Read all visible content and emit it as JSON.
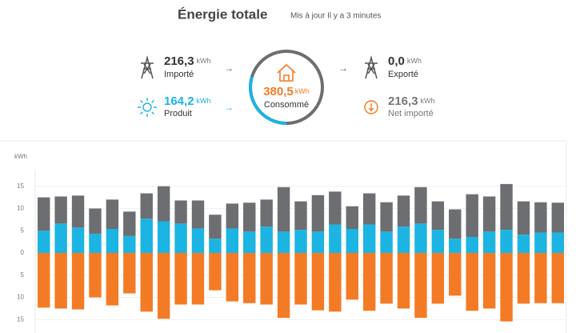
{
  "header": {
    "title": "Énergie totale",
    "subtitle": "Mis à jour Il y a 3 minutes"
  },
  "summary": {
    "imported": {
      "value": "216,3",
      "unit": "kWh",
      "label": "Importé"
    },
    "produced": {
      "value": "164,2",
      "unit": "kWh",
      "label": "Produit"
    },
    "consumed": {
      "value": "380,5",
      "unit": "kWh",
      "label": "Consommé"
    },
    "exported": {
      "value": "0,0",
      "unit": "kWh",
      "label": "Exporté"
    },
    "net": {
      "value": "216,3",
      "unit": "kWh",
      "label": "Net importé"
    }
  },
  "chart_data": {
    "type": "bar",
    "y_label": "kWh",
    "categories": [
      null,
      null,
      null,
      null,
      null,
      null,
      null,
      null,
      null,
      null,
      null,
      null,
      null,
      null,
      null,
      null,
      null,
      null,
      null,
      null,
      null,
      null,
      null,
      null,
      null,
      null,
      null,
      null,
      null,
      null,
      null
    ],
    "series": [
      {
        "color": "#6d6e71",
        "values": [
          7.5,
          6.1,
          7.2,
          5.7,
          6.6,
          5.5,
          5.7,
          7.9,
          5.2,
          6.3,
          5.4,
          5.6,
          6.5,
          6.1,
          10.0,
          6.4,
          8.2,
          7.4,
          5.1,
          7.0,
          6.6,
          7.0,
          8.2,
          6.4,
          6.6,
          9.6,
          7.9,
          10.3,
          7.5,
          6.8,
          6.7
        ]
      },
      {
        "color": "#1cb4e2",
        "values": [
          5.0,
          6.6,
          5.7,
          4.3,
          5.4,
          3.8,
          7.7,
          7.1,
          6.6,
          5.5,
          3.2,
          5.5,
          4.8,
          5.9,
          4.8,
          5.2,
          4.8,
          6.4,
          5.4,
          6.4,
          4.8,
          5.9,
          6.6,
          5.2,
          3.2,
          3.6,
          4.8,
          5.2,
          4.1,
          4.6,
          4.6
        ]
      },
      {
        "color": "#f47b25",
        "values": [
          -12.3,
          -12.5,
          -12.7,
          -10.0,
          -11.8,
          -9.1,
          -13.2,
          -14.8,
          -11.6,
          -11.6,
          -8.4,
          -10.9,
          -11.3,
          -11.6,
          -14.6,
          -11.6,
          -12.9,
          -13.2,
          -10.5,
          -13.0,
          -11.4,
          -12.5,
          -14.6,
          -11.4,
          -9.6,
          -13.0,
          -12.5,
          -15.4,
          -11.4,
          -11.3,
          -11.3
        ]
      }
    ],
    "ylim": [
      -18,
      18
    ],
    "yticks": [
      {
        "value": -15,
        "label": "15"
      },
      {
        "value": -10,
        "label": "10"
      },
      {
        "value": -5,
        "label": "5"
      },
      0,
      5,
      10,
      15
    ],
    "grid": true
  }
}
